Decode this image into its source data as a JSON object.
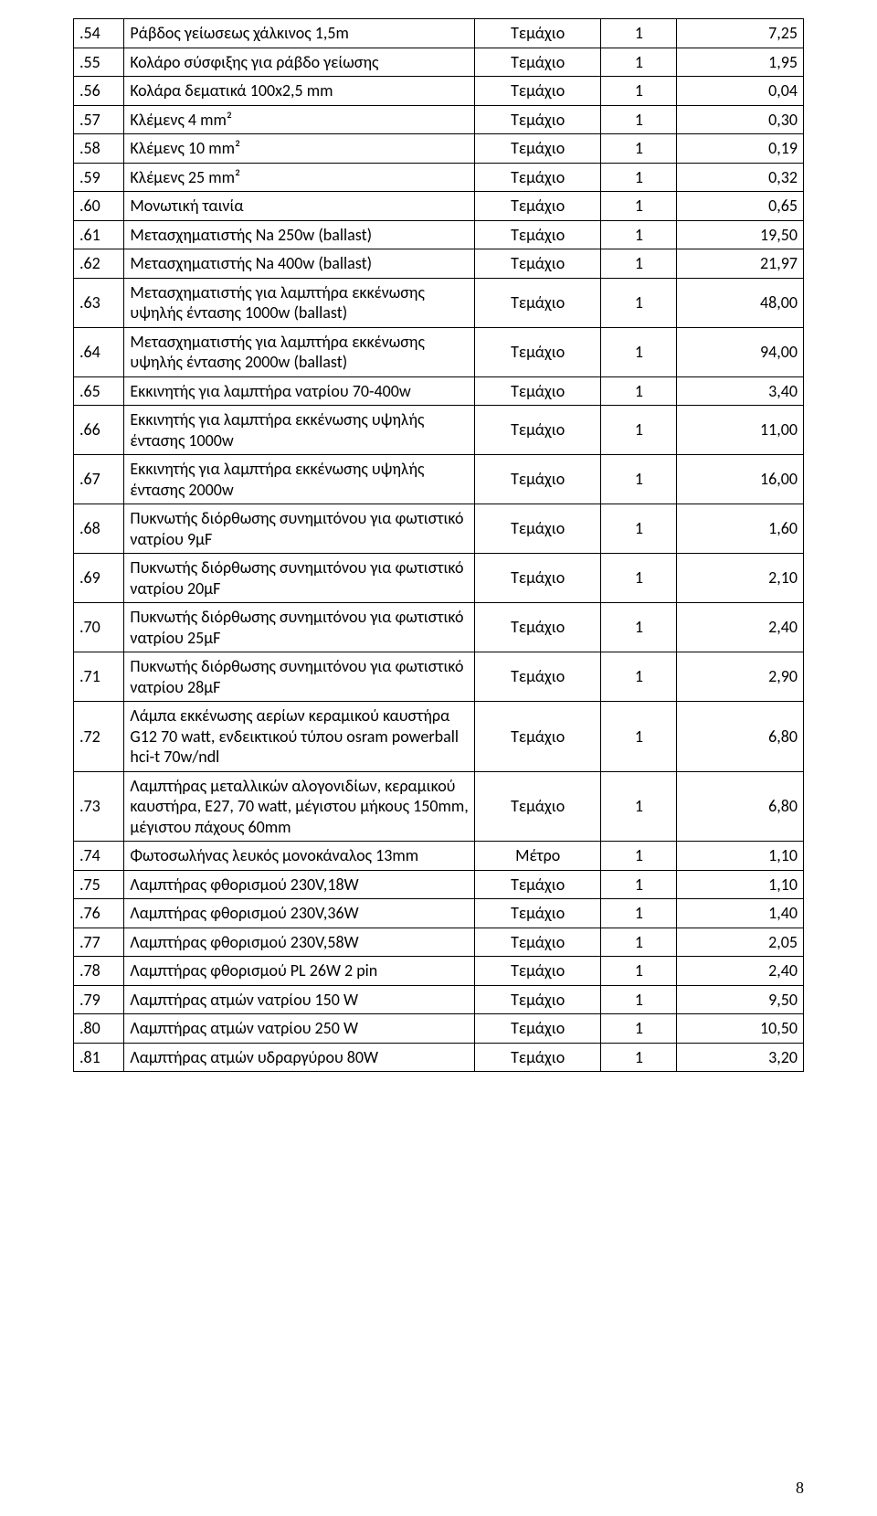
{
  "page_number": "8",
  "unit_piece": "Τεμάχιο",
  "unit_meter": "Μέτρο",
  "columns": {
    "id_width": 52,
    "desc_width": 360,
    "unit_width": 130,
    "qty_width": 78,
    "price_width": 130
  },
  "style": {
    "font_family": "Calibri",
    "font_size_pt": 11,
    "border_color": "#000000",
    "background_color": "#ffffff",
    "text_color": "#000000"
  },
  "rows": [
    {
      "id": ".54",
      "desc": "Ράβδος γείωσεως χάλκινος 1,5m",
      "unit": "Τεμάχιο",
      "qty": "1",
      "price": "7,25"
    },
    {
      "id": ".55",
      "desc": "Κολάρο σύσφιξης για ράβδο γείωσης",
      "unit": "Τεμάχιο",
      "qty": "1",
      "price": "1,95"
    },
    {
      "id": ".56",
      "desc": "Κολάρα δεματικά 100x2,5 mm",
      "unit": "Τεμάχιο",
      "qty": "1",
      "price": "0,04"
    },
    {
      "id": ".57",
      "desc": "Κλέμενς 4 mm²",
      "unit": "Τεμάχιο",
      "qty": "1",
      "price": "0,30"
    },
    {
      "id": ".58",
      "desc": "Κλέμενς 10 mm²",
      "unit": "Τεμάχιο",
      "qty": "1",
      "price": "0,19"
    },
    {
      "id": ".59",
      "desc": "Κλέμενς 25 mm²",
      "unit": "Τεμάχιο",
      "qty": "1",
      "price": "0,32"
    },
    {
      "id": ".60",
      "desc": "Μονωτική ταινία",
      "unit": "Τεμάχιο",
      "qty": "1",
      "price": "0,65"
    },
    {
      "id": ".61",
      "desc": "Μετασχηματιστής Νa 250w  (ballast)",
      "unit": "Τεμάχιο",
      "qty": "1",
      "price": "19,50"
    },
    {
      "id": ".62",
      "desc": "Μετασχηματιστής Νa 400w  (ballast)",
      "unit": "Τεμάχιο",
      "qty": "1",
      "price": "21,97"
    },
    {
      "id": ".63",
      "desc": "Μετασχηματιστής για λαμπτήρα εκκένωσης υψηλής έντασης 1000w (ballast)",
      "unit": "Τεμάχιο",
      "qty": "1",
      "price": "48,00"
    },
    {
      "id": ".64",
      "desc": "Μετασχηματιστής για λαμπτήρα εκκένωσης υψηλής έντασης 2000w (ballast)",
      "unit": "Τεμάχιο",
      "qty": "1",
      "price": "94,00"
    },
    {
      "id": ".65",
      "desc": "Εκκινητής για λαμπτήρα νατρίου 70-400w",
      "unit": "Τεμάχιο",
      "qty": "1",
      "price": "3,40"
    },
    {
      "id": ".66",
      "desc": "Εκκινητής για λαμπτήρα εκκένωσης υψηλής έντασης 1000w",
      "unit": "Τεμάχιο",
      "qty": "1",
      "price": "11,00"
    },
    {
      "id": ".67",
      "desc": "Εκκινητής για λαμπτήρα εκκένωσης υψηλής έντασης 2000w",
      "unit": "Τεμάχιο",
      "qty": "1",
      "price": "16,00"
    },
    {
      "id": ".68",
      "desc": "Πυκνωτής διόρθωσης συνημιτόνου για φωτιστικό νατρίου 9μF",
      "unit": "Τεμάχιο",
      "qty": "1",
      "price": "1,60"
    },
    {
      "id": ".69",
      "desc": "Πυκνωτής διόρθωσης συνημιτόνου για φωτιστικό νατρίου 20μF",
      "unit": "Τεμάχιο",
      "qty": "1",
      "price": "2,10"
    },
    {
      "id": ".70",
      "desc": "Πυκνωτής διόρθωσης συνημιτόνου για φωτιστικό νατρίου 25μF",
      "unit": "Τεμάχιο",
      "qty": "1",
      "price": "2,40"
    },
    {
      "id": ".71",
      "desc": "Πυκνωτής διόρθωσης συνημιτόνου για φωτιστικό νατρίου 28μF",
      "unit": "Τεμάχιο",
      "qty": "1",
      "price": "2,90"
    },
    {
      "id": ".72",
      "desc": "Λάμπα εκκένωσης αερίων κεραμικού καυστήρα G12 70 watt, ενδεικτικού τύπου osram powerball hci-t 70w/ndl",
      "unit": "Τεμάχιο",
      "qty": "1",
      "price": "6,80"
    },
    {
      "id": ".73",
      "desc": "Λαμπτήρας μεταλλικών αλογονιδίων, κεραμικού καυστήρα, Ε27, 70 watt, μέγιστου μήκους 150mm, μέγιστου πάχους 60mm",
      "unit": "Τεμάχιο",
      "qty": "1",
      "price": "6,80"
    },
    {
      "id": ".74",
      "desc": "Φωτοσωλήνας λευκός μονοκάναλος 13mm",
      "unit": "Μέτρο",
      "qty": "1",
      "price": "1,10"
    },
    {
      "id": ".75",
      "desc": "Λαμπτήρας φθορισμού 230V,18W",
      "unit": "Τεμάχιο",
      "qty": "1",
      "price": "1,10"
    },
    {
      "id": ".76",
      "desc": "Λαμπτήρας φθορισμού 230V,36W",
      "unit": "Τεμάχιο",
      "qty": "1",
      "price": "1,40"
    },
    {
      "id": ".77",
      "desc": "Λαμπτήρας φθορισμού 230V,58W",
      "unit": "Τεμάχιο",
      "qty": "1",
      "price": "2,05"
    },
    {
      "id": ".78",
      "desc": "Λαμπτήρας φθορισμού PL 26W 2 pin",
      "unit": "Τεμάχιο",
      "qty": "1",
      "price": "2,40"
    },
    {
      "id": ".79",
      "desc": "Λαμπτήρας ατμών νατρίου 150 W",
      "unit": "Τεμάχιο",
      "qty": "1",
      "price": "9,50"
    },
    {
      "id": ".80",
      "desc": "Λαμπτήρας ατμών νατρίου 250 W",
      "unit": "Τεμάχιο",
      "qty": "1",
      "price": "10,50"
    },
    {
      "id": ".81",
      "desc": "Λαμπτήρας ατμών υδραργύρου 80W",
      "unit": "Τεμάχιο",
      "qty": "1",
      "price": "3,20"
    }
  ]
}
